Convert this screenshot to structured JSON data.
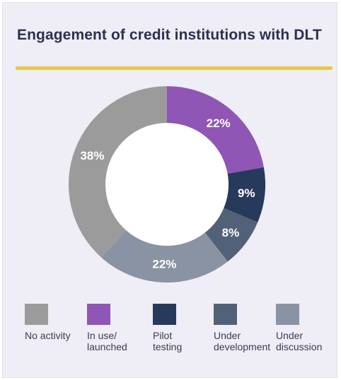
{
  "title": "Engagement of credit institutions with DLT",
  "accent_color": "#e6c94a",
  "chart_data": {
    "type": "pie",
    "variant": "donut",
    "title": "Engagement of credit institutions with DLT",
    "start_angle_deg": 0,
    "direction": "clockwise",
    "slices": [
      {
        "label": "In use/\nlaunched",
        "value": 22,
        "display": "22%",
        "color": "#8f56b5"
      },
      {
        "label": "Pilot\ntesting",
        "value": 9,
        "display": "9%",
        "color": "#283a5c"
      },
      {
        "label": "Under\ndevelopment",
        "value": 8,
        "display": "8%",
        "color": "#536178"
      },
      {
        "label": "Under\ndiscussion",
        "value": 22,
        "display": "22%",
        "color": "#8a93a3"
      },
      {
        "label": "No activity",
        "value": 38,
        "display": "38%",
        "color": "#9b9b9b"
      }
    ],
    "legend_order": [
      "No activity",
      "In use/\nlaunched",
      "Pilot\ntesting",
      "Under\ndevelopment",
      "Under\ndiscussion"
    ],
    "legend_position": "bottom"
  }
}
